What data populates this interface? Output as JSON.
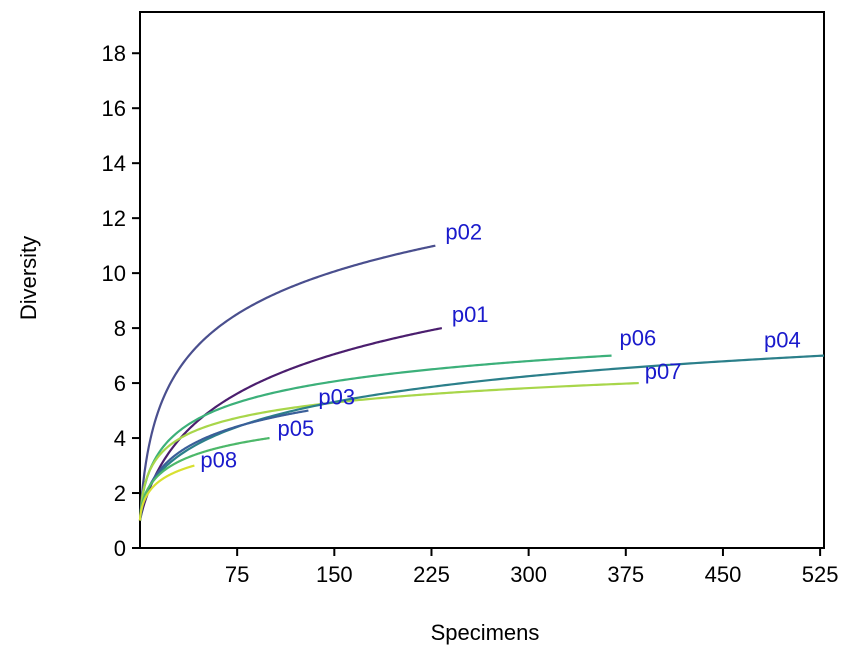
{
  "chart_data": {
    "type": "line",
    "title": "",
    "xlabel": "Specimens",
    "ylabel": "Diversity",
    "xlim": [
      0,
      528
    ],
    "ylim": [
      0,
      19.5
    ],
    "xticks": [
      75,
      150,
      225,
      300,
      375,
      450,
      525
    ],
    "yticks": [
      0,
      2,
      4,
      6,
      8,
      10,
      12,
      14,
      16,
      18
    ],
    "label_color": "#1a1acc",
    "grid": false,
    "series": [
      {
        "name": "p02",
        "color": "#4a4f8e",
        "n": 228,
        "max": 11,
        "b": 0.9,
        "c": 0.22
      },
      {
        "name": "p01",
        "color": "#4b1e6e",
        "n": 233,
        "max": 8,
        "b": 0.9,
        "c": 0.06
      },
      {
        "name": "p06",
        "color": "#3cb07a",
        "n": 364,
        "max": 7,
        "b": 0.6,
        "c": 0.08
      },
      {
        "name": "p07",
        "color": "#a8d64a",
        "n": 385,
        "max": 6,
        "b": 0.6,
        "c": 0.15
      },
      {
        "name": "p04",
        "color": "#2b7f8a",
        "n": 528,
        "max": 7,
        "b": 0.5,
        "c": 0.012
      },
      {
        "name": "p03",
        "color": "#3a5f99",
        "n": 130,
        "max": 5,
        "b": 0.7,
        "c": 0.08
      },
      {
        "name": "p05",
        "color": "#4db86a",
        "n": 100,
        "max": 4,
        "b": 0.5,
        "c": 0.05
      },
      {
        "name": "p08",
        "color": "#d8e030",
        "n": 42,
        "max": 3,
        "b": 0.6,
        "c": 0.12
      }
    ]
  }
}
